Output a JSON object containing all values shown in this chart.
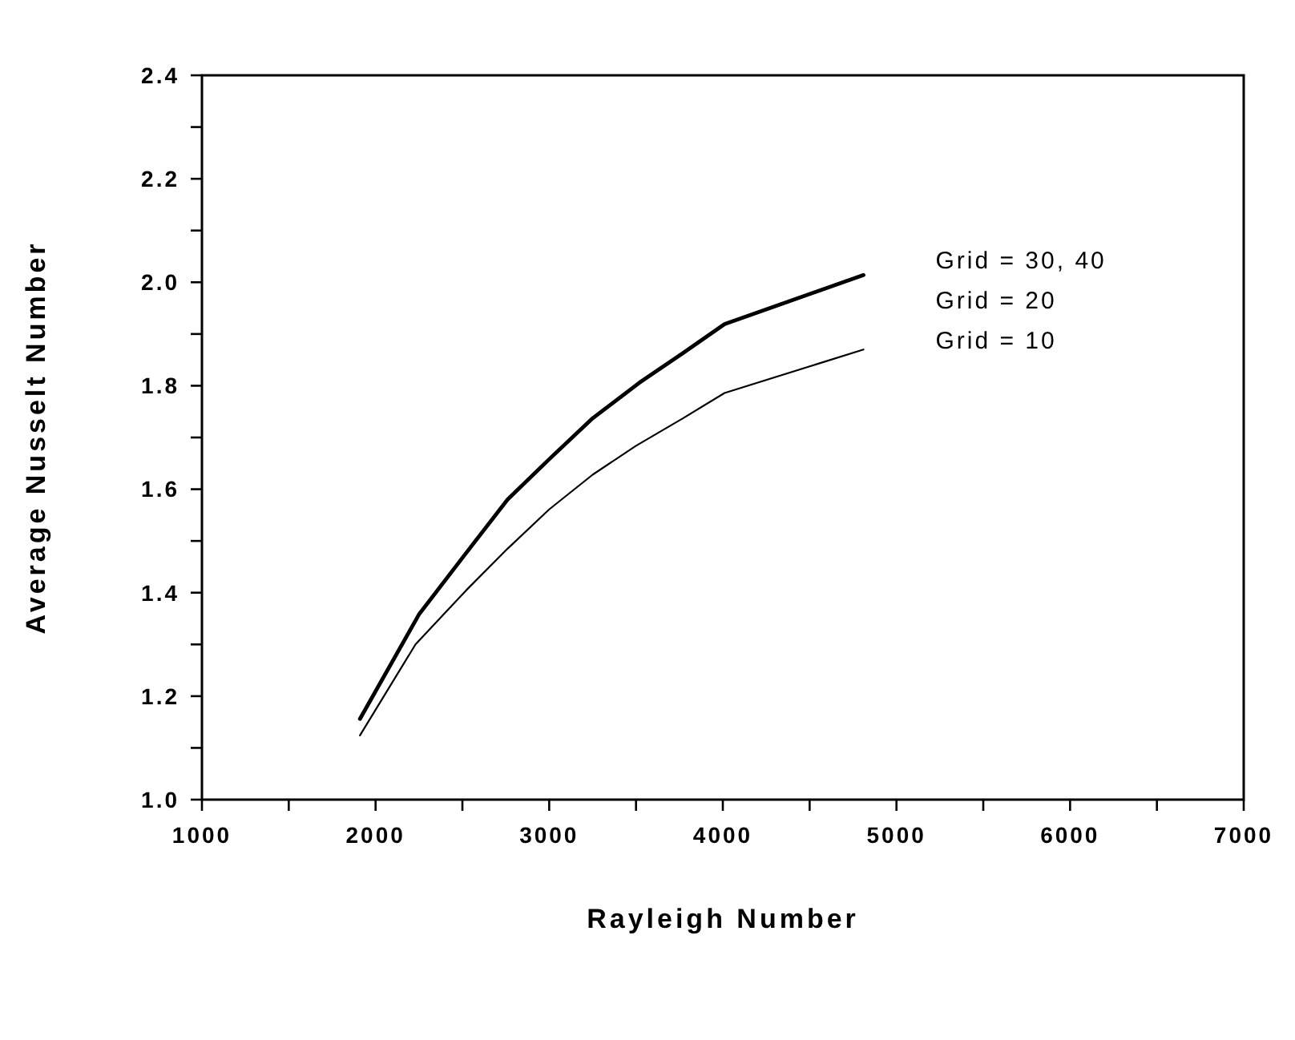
{
  "chart_data": {
    "type": "line",
    "xlabel": "Rayleigh Number",
    "ylabel": "Average Nusselt Number",
    "x": [
      1910,
      2250,
      2520,
      2760,
      3000,
      3250,
      3520,
      3770,
      4010,
      4810
    ],
    "series": [
      {
        "name": "Grid = 30, 40",
        "color": "#000000",
        "values": [
          1.156,
          1.358,
          1.476,
          1.58,
          1.658,
          1.737,
          1.806,
          1.863,
          1.919,
          2.014
        ]
      },
      {
        "name": "Grid = 20",
        "color": "#000000",
        "values": [
          1.156,
          1.358,
          1.476,
          1.58,
          1.658,
          1.737,
          1.806,
          1.863,
          1.919,
          2.014
        ]
      },
      {
        "name": "Grid = 10",
        "color": "#000000",
        "x": [
          1910,
          2230,
          2520,
          2760,
          3000,
          3250,
          3500,
          3770,
          4010,
          4810
        ],
        "values": [
          1.124,
          1.3,
          1.404,
          1.485,
          1.561,
          1.628,
          1.684,
          1.737,
          1.786,
          1.87
        ]
      }
    ],
    "xlim": [
      1000,
      7000
    ],
    "xticks": [
      1000,
      {
        "value": 1500,
        "label": null
      },
      2000,
      {
        "value": 2500,
        "label": null
      },
      3000,
      {
        "value": 3500,
        "label": null
      },
      4000,
      {
        "value": 4500,
        "label": null
      },
      5000,
      {
        "value": 5500,
        "label": null
      },
      6000,
      {
        "value": 6500,
        "label": null
      },
      7000
    ],
    "ylim": [
      1.0,
      2.4
    ],
    "yticks": [
      {
        "value": 1.0,
        "label": "1.0"
      },
      {
        "value": 1.1,
        "label": null
      },
      {
        "value": 1.2,
        "label": "1.2"
      },
      {
        "value": 1.3,
        "label": null
      },
      {
        "value": 1.4,
        "label": "1.4"
      },
      {
        "value": 1.5,
        "label": null
      },
      {
        "value": 1.6,
        "label": "1.6"
      },
      {
        "value": 1.7,
        "label": null
      },
      {
        "value": 1.8,
        "label": "1.8"
      },
      {
        "value": 1.9,
        "label": null
      },
      {
        "value": 2.0,
        "label": "2.0"
      },
      {
        "value": 2.1,
        "label": null
      },
      {
        "value": 2.2,
        "label": "2.2"
      },
      {
        "value": 2.3,
        "label": null
      },
      {
        "value": 2.4,
        "label": "2.4"
      }
    ],
    "grid": false,
    "marker": "none",
    "line_style": "solid"
  }
}
